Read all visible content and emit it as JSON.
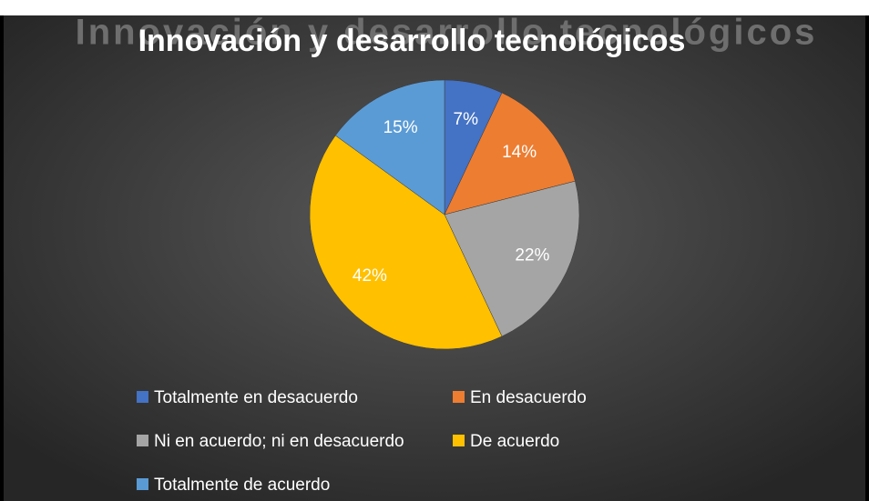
{
  "chart_data": {
    "type": "pie",
    "title": "Innovación y desarrollo tecnológicos",
    "categories": [
      "Totalmente en desacuerdo",
      "En desacuerdo",
      "Ni en acuerdo; ni en desacuerdo",
      "De acuerdo",
      "Totalmente de acuerdo"
    ],
    "values": [
      7,
      14,
      22,
      42,
      15
    ],
    "value_labels": [
      "7%",
      "14%",
      "22%",
      "42%",
      "15%"
    ],
    "colors": [
      "#4472c4",
      "#ed7d31",
      "#a5a5a5",
      "#ffc000",
      "#5b9bd5"
    ],
    "legend": "bottom"
  }
}
